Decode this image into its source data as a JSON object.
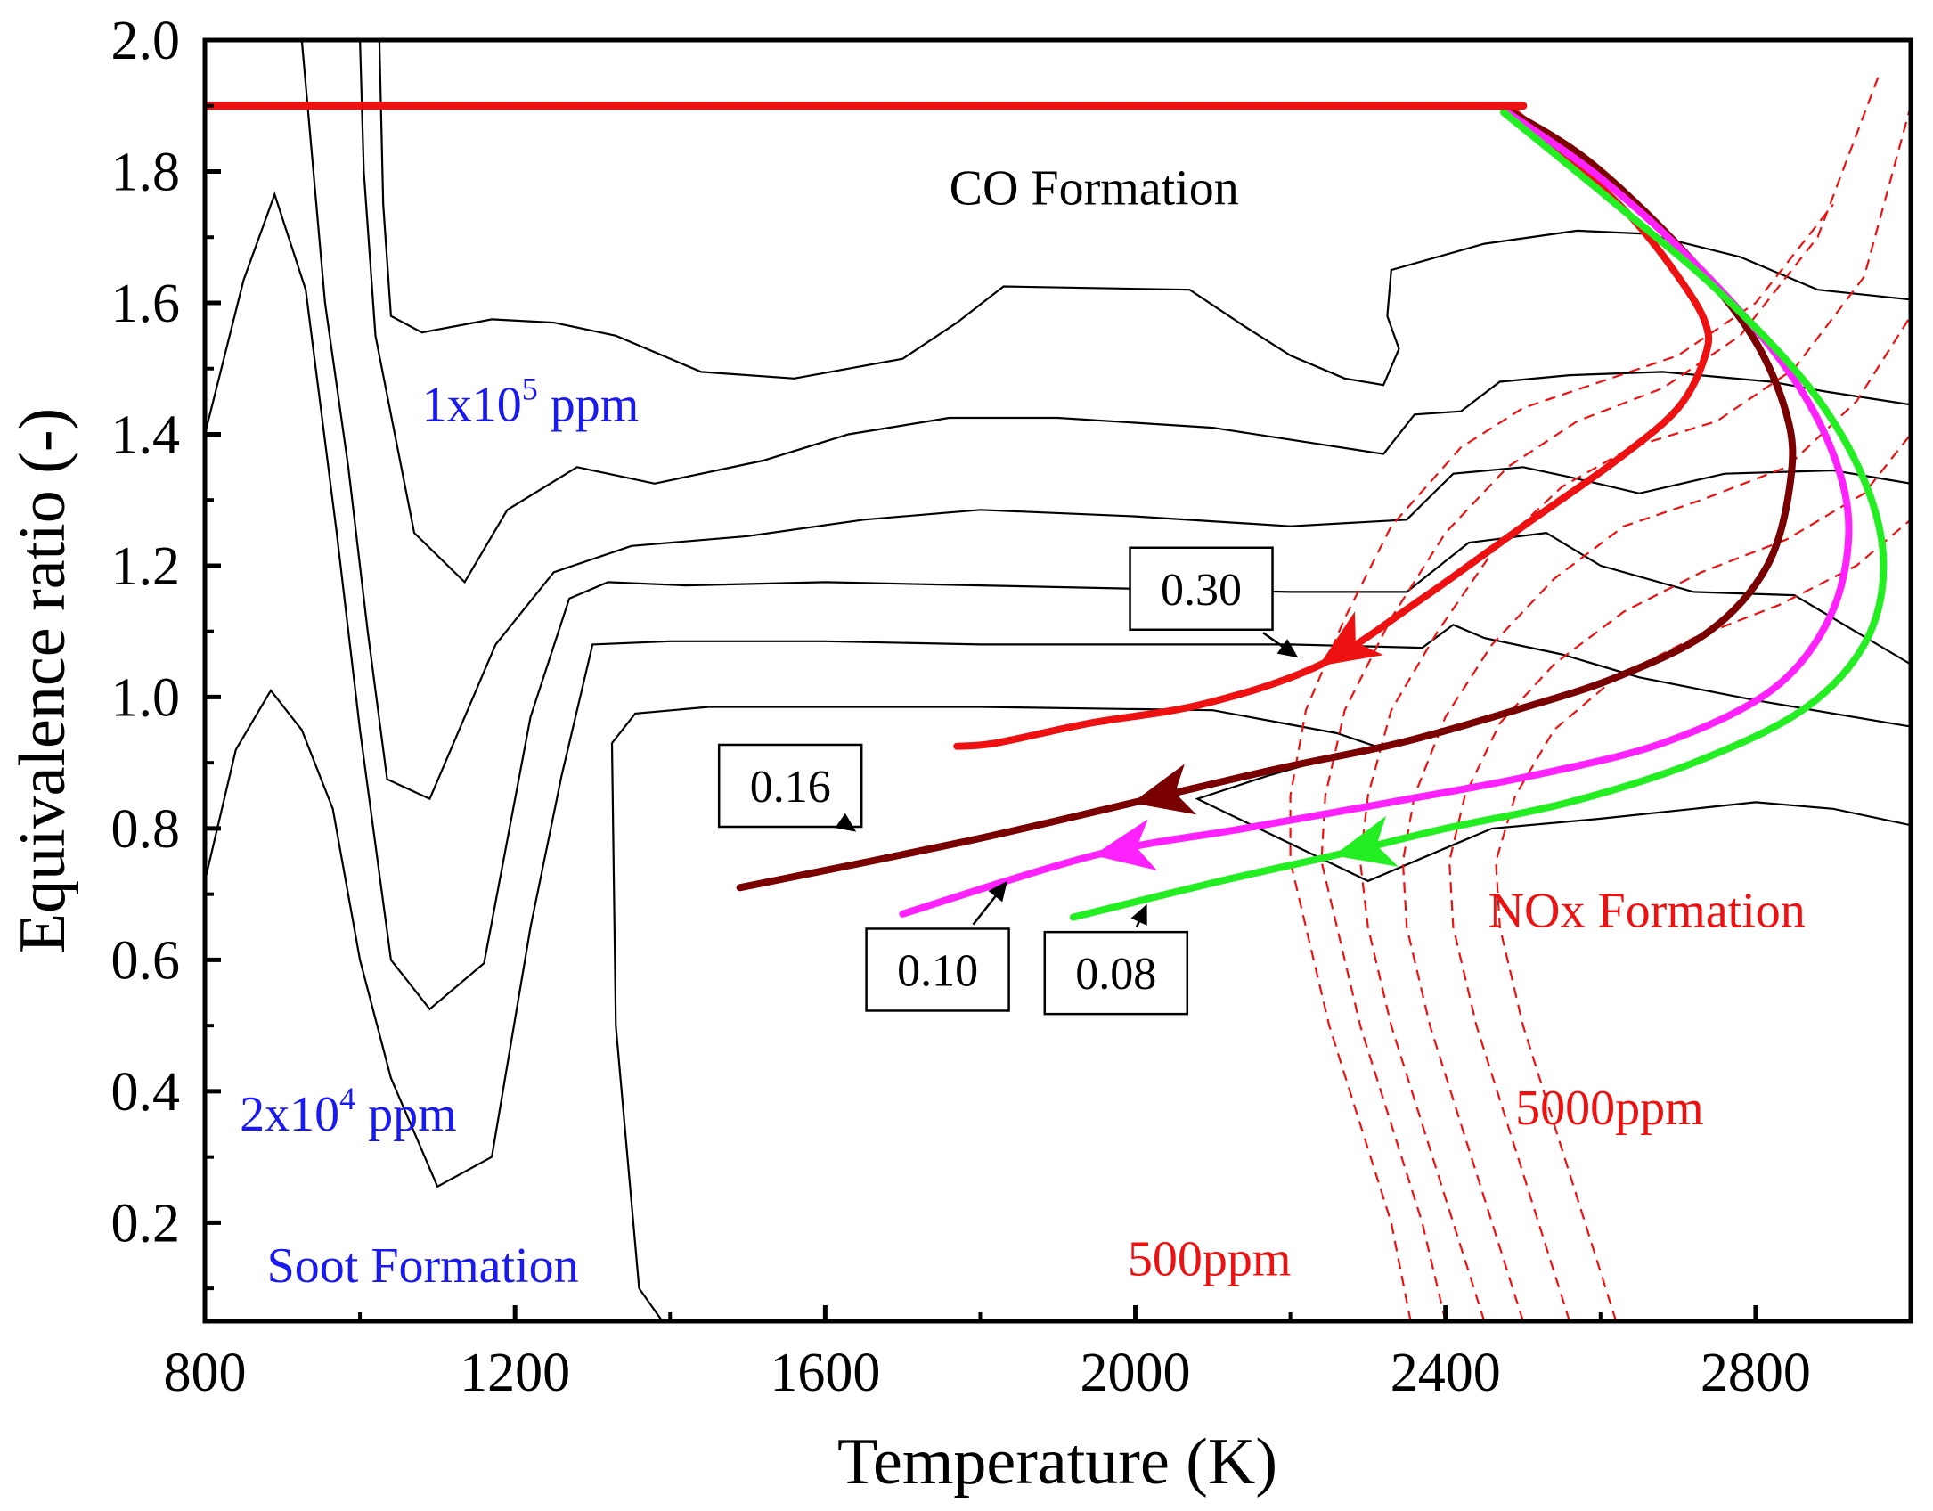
{
  "chart_data": {
    "type": "line",
    "xlabel": "Temperature (K)",
    "ylabel": "Equivalence ratio (-)",
    "xlim": [
      800,
      3000
    ],
    "ylim": [
      0.05,
      2.0
    ],
    "xticks": [
      800,
      1200,
      1600,
      2000,
      2400,
      2800
    ],
    "yticks": [
      0.2,
      0.4,
      0.6,
      0.8,
      1.0,
      1.2,
      1.4,
      1.6,
      1.8,
      2.0
    ],
    "xtick_labels": [
      "800",
      "1200",
      "1600",
      "2000",
      "2400",
      "2800"
    ],
    "ytick_labels": [
      "0.2",
      "0.4",
      "0.6",
      "0.8",
      "1.0",
      "1.2",
      "1.4",
      "1.6",
      "1.8",
      "2.0"
    ],
    "annotations": [
      {
        "id": "co-formation",
        "text": "CO Formation",
        "x": 1760,
        "y": 1.75,
        "color": "#000000"
      },
      {
        "id": "co-1e5",
        "text": "1x10",
        "sup": "5",
        "after": " ppm",
        "x": 1080,
        "y": 1.42,
        "color": "#1a1aee"
      },
      {
        "id": "co-2e4",
        "text": "2x10",
        "sup": "4",
        "after": " ppm",
        "x": 845,
        "y": 0.34,
        "color": "#1a1aee"
      },
      {
        "id": "soot-formation",
        "text": "Soot Formation",
        "x": 880,
        "y": 0.11,
        "color": "#1a1aee"
      },
      {
        "id": "nox-formation",
        "text": "NOx Formation",
        "x": 2455,
        "y": 0.65,
        "color": "#ee1111"
      },
      {
        "id": "nox-5000",
        "text": "5000ppm",
        "x": 2490,
        "y": 0.35,
        "color": "#ee1111"
      },
      {
        "id": "nox-500",
        "text": "500ppm",
        "x": 1990,
        "y": 0.12,
        "color": "#ee1111"
      }
    ],
    "path_labels": [
      {
        "id": "label-030",
        "text": "0.30",
        "x": 2085,
        "y": 1.165,
        "arrow_to": [
          2210,
          1.06
        ]
      },
      {
        "id": "label-016",
        "text": "0.16",
        "x": 1555,
        "y": 0.865,
        "arrow_to": [
          1640,
          0.795
        ]
      },
      {
        "id": "label-010",
        "text": "0.10",
        "x": 1745,
        "y": 0.585,
        "arrow_to": [
          1835,
          0.72
        ]
      },
      {
        "id": "label-008",
        "text": "0.08",
        "x": 1975,
        "y": 0.58,
        "arrow_to": [
          2015,
          0.685
        ]
      }
    ],
    "series": [
      {
        "name": "0.30",
        "color": "#ee1111",
        "width": 8,
        "x": [
          2490,
          2560,
          2640,
          2700,
          2735,
          2735,
          2700,
          2620,
          2500,
          2370,
          2240,
          2090,
          1940,
          1820,
          1770
        ],
        "y": [
          1.89,
          1.82,
          1.73,
          1.64,
          1.57,
          1.52,
          1.44,
          1.36,
          1.26,
          1.15,
          1.05,
          0.99,
          0.96,
          0.93,
          0.925
        ],
        "arrow_at": 10
      },
      {
        "name": "0.16",
        "color": "#7a0000",
        "width": 8,
        "x": [
          2485,
          2580,
          2690,
          2790,
          2840,
          2845,
          2815,
          2740,
          2620,
          2490,
          2340,
          2180,
          2000,
          1780,
          1490
        ],
        "y": [
          1.89,
          1.82,
          1.7,
          1.56,
          1.43,
          1.33,
          1.2,
          1.1,
          1.03,
          0.98,
          0.93,
          0.89,
          0.84,
          0.78,
          0.71
        ],
        "arrow_at": 12
      },
      {
        "name": "0.10",
        "color": "#ff22ff",
        "width": 8,
        "x": [
          2480,
          2600,
          2730,
          2840,
          2900,
          2920,
          2895,
          2820,
          2680,
          2510,
          2330,
          2140,
          1950,
          1700
        ],
        "y": [
          1.89,
          1.79,
          1.65,
          1.5,
          1.37,
          1.25,
          1.12,
          1.01,
          0.93,
          0.88,
          0.84,
          0.8,
          0.76,
          0.67
        ],
        "arrow_at": 12
      },
      {
        "name": "0.08",
        "color": "#22ee22",
        "width": 8,
        "x": [
          2475,
          2610,
          2750,
          2870,
          2940,
          2965,
          2940,
          2860,
          2720,
          2560,
          2400,
          2260,
          2110,
          1920
        ],
        "y": [
          1.89,
          1.76,
          1.62,
          1.47,
          1.33,
          1.2,
          1.08,
          0.98,
          0.9,
          0.84,
          0.8,
          0.76,
          0.72,
          0.665
        ],
        "arrow_at": 11
      },
      {
        "name": "flat",
        "color": "#ee1111",
        "width": 9,
        "x": [
          800,
          2500
        ],
        "y": [
          1.9,
          1.9
        ],
        "arrow_at": -1
      }
    ],
    "contours_co": [
      {
        "x": [
          1025,
          1030,
          1040,
          1080,
          1170,
          1250,
          1330,
          1440,
          1560,
          1700,
          1770,
          1830,
          2070,
          2140,
          2200,
          2270,
          2320,
          2340,
          2325,
          2330,
          2450,
          2570,
          2660,
          2780,
          2820,
          2880,
          3000
        ],
        "y": [
          2.0,
          1.75,
          1.58,
          1.555,
          1.575,
          1.57,
          1.55,
          1.495,
          1.485,
          1.515,
          1.57,
          1.625,
          1.62,
          1.565,
          1.52,
          1.485,
          1.475,
          1.53,
          1.58,
          1.65,
          1.69,
          1.71,
          1.705,
          1.67,
          1.65,
          1.62,
          1.605
        ]
      },
      {
        "x": [
          1000,
          1005,
          1020,
          1070,
          1135,
          1190,
          1280,
          1380,
          1520,
          1630,
          1760,
          1900,
          2100,
          2320,
          2360,
          2420,
          2470,
          2560,
          2680,
          2820,
          2890,
          3000
        ],
        "y": [
          2.0,
          1.8,
          1.55,
          1.25,
          1.175,
          1.285,
          1.35,
          1.325,
          1.36,
          1.4,
          1.425,
          1.425,
          1.41,
          1.37,
          1.43,
          1.435,
          1.48,
          1.49,
          1.495,
          1.48,
          1.465,
          1.445
        ]
      },
      {
        "x": [
          925,
          955,
          985,
          1010,
          1035,
          1090,
          1175,
          1250,
          1350,
          1500,
          1650,
          1800,
          2000,
          2200,
          2350,
          2410,
          2500,
          2560,
          2650,
          2760,
          2900,
          3000
        ],
        "y": [
          2.0,
          1.6,
          1.35,
          1.1,
          0.875,
          0.845,
          1.08,
          1.19,
          1.23,
          1.245,
          1.27,
          1.285,
          1.275,
          1.26,
          1.27,
          1.34,
          1.35,
          1.335,
          1.31,
          1.34,
          1.345,
          1.325
        ]
      },
      {
        "x": [
          800,
          850,
          890,
          930,
          970,
          1000,
          1040,
          1090,
          1160,
          1220,
          1270,
          1320,
          1420,
          1600,
          1800,
          2000,
          2200,
          2350,
          2430,
          2530,
          2600,
          2720,
          2850,
          3000
        ],
        "y": [
          1.4,
          1.635,
          1.765,
          1.62,
          1.25,
          0.95,
          0.6,
          0.525,
          0.595,
          0.97,
          1.15,
          1.175,
          1.17,
          1.175,
          1.17,
          1.165,
          1.16,
          1.16,
          1.235,
          1.25,
          1.2,
          1.16,
          1.155,
          1.05
        ]
      },
      {
        "x": [
          800,
          840,
          885,
          925,
          965,
          1000,
          1040,
          1100,
          1170,
          1220,
          1260,
          1300,
          1400,
          1600,
          1800,
          2000,
          2200,
          2370,
          2410,
          2450,
          2550,
          2650,
          2800,
          3000
        ],
        "y": [
          0.72,
          0.92,
          1.01,
          0.95,
          0.83,
          0.6,
          0.42,
          0.255,
          0.3,
          0.65,
          0.88,
          1.08,
          1.085,
          1.085,
          1.08,
          1.08,
          1.08,
          1.075,
          1.11,
          1.09,
          1.065,
          1.03,
          0.995,
          0.955
        ]
      }
    ],
    "contour_soot": {
      "x": [
        1390,
        1360,
        1330,
        1325,
        1355,
        1450,
        1600,
        1800,
        2100,
        2260,
        2310,
        2230,
        2170,
        2080,
        2300,
        2390,
        2460,
        2600,
        2800,
        2900,
        3000
      ],
      "y": [
        0.05,
        0.1,
        0.5,
        0.93,
        0.975,
        0.985,
        0.985,
        0.985,
        0.98,
        0.945,
        0.925,
        0.9,
        0.88,
        0.845,
        0.72,
        0.765,
        0.8,
        0.815,
        0.84,
        0.83,
        0.805
      ]
    },
    "contours_nox": [
      {
        "x": [
          2355,
          2330,
          2290,
          2250,
          2220,
          2200,
          2200,
          2220,
          2270,
          2330,
          2420,
          2500,
          2600,
          2700,
          2800,
          2900
        ],
        "y": [
          0.05,
          0.2,
          0.35,
          0.5,
          0.65,
          0.75,
          0.85,
          0.98,
          1.12,
          1.26,
          1.38,
          1.44,
          1.48,
          1.52,
          1.6,
          1.75
        ]
      },
      {
        "x": [
          2400,
          2370,
          2330,
          2290,
          2260,
          2240,
          2245,
          2270,
          2330,
          2400,
          2480,
          2570,
          2680,
          2780,
          2880,
          2960
        ],
        "y": [
          0.05,
          0.2,
          0.35,
          0.5,
          0.65,
          0.75,
          0.85,
          0.98,
          1.12,
          1.25,
          1.35,
          1.42,
          1.47,
          1.55,
          1.7,
          1.95
        ]
      },
      {
        "x": [
          2450,
          2410,
          2370,
          2330,
          2300,
          2290,
          2300,
          2330,
          2390,
          2460,
          2550,
          2640,
          2750,
          2850,
          2940,
          3000
        ],
        "y": [
          0.05,
          0.2,
          0.35,
          0.5,
          0.65,
          0.75,
          0.85,
          0.98,
          1.1,
          1.22,
          1.32,
          1.38,
          1.42,
          1.5,
          1.64,
          1.9
        ]
      },
      {
        "x": [
          2500,
          2460,
          2420,
          2380,
          2350,
          2345,
          2360,
          2400,
          2460,
          2540,
          2630,
          2730,
          2840,
          2930,
          3000
        ],
        "y": [
          0.05,
          0.2,
          0.35,
          0.5,
          0.65,
          0.75,
          0.85,
          0.97,
          1.08,
          1.18,
          1.26,
          1.3,
          1.35,
          1.45,
          1.58
        ]
      },
      {
        "x": [
          2560,
          2520,
          2480,
          2440,
          2410,
          2405,
          2425,
          2470,
          2540,
          2630,
          2730,
          2840,
          2940,
          3000
        ],
        "y": [
          0.05,
          0.2,
          0.35,
          0.5,
          0.65,
          0.75,
          0.85,
          0.96,
          1.05,
          1.13,
          1.19,
          1.24,
          1.31,
          1.4
        ]
      },
      {
        "x": [
          2620,
          2580,
          2540,
          2500,
          2470,
          2465,
          2490,
          2540,
          2620,
          2720,
          2830,
          2930,
          3000
        ],
        "y": [
          0.05,
          0.2,
          0.35,
          0.5,
          0.65,
          0.75,
          0.85,
          0.95,
          1.03,
          1.09,
          1.14,
          1.2,
          1.27
        ]
      }
    ]
  }
}
